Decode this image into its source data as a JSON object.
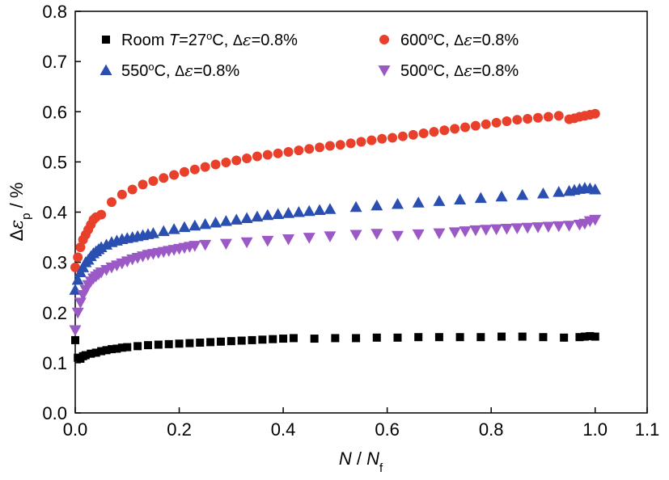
{
  "chart_data": {
    "type": "scatter",
    "xlabel": "N / N_f",
    "ylabel": "Δε_p / %",
    "xlim": [
      0.0,
      1.1
    ],
    "ylim": [
      0.0,
      0.8
    ],
    "x_ticks": [
      "0.0",
      "0.2",
      "0.4",
      "0.6",
      "0.8",
      "1.0",
      "1.1"
    ],
    "y_ticks": [
      "0.0",
      "0.1",
      "0.2",
      "0.3",
      "0.4",
      "0.5",
      "0.6",
      "0.7",
      "0.8"
    ],
    "legend_placement": "top",
    "series": [
      {
        "name": "Room T=27°C, Δε=0.8%",
        "legend": {
          "prefix": "Room ",
          "var": "T",
          "mid": "=27",
          "sup": "o",
          "post": "C, ",
          "delta": "Δ",
          "eps": "ε",
          "tail": "=0.8%"
        },
        "marker": "square",
        "color": "#000000",
        "x": [
          0.0,
          0.005,
          0.01,
          0.015,
          0.02,
          0.03,
          0.04,
          0.05,
          0.06,
          0.07,
          0.08,
          0.09,
          0.1,
          0.12,
          0.14,
          0.16,
          0.18,
          0.2,
          0.22,
          0.24,
          0.26,
          0.28,
          0.3,
          0.32,
          0.34,
          0.36,
          0.38,
          0.4,
          0.42,
          0.46,
          0.5,
          0.54,
          0.58,
          0.62,
          0.66,
          0.7,
          0.74,
          0.78,
          0.82,
          0.86,
          0.9,
          0.94,
          0.97,
          0.98,
          0.99,
          1.0
        ],
        "y": [
          0.145,
          0.11,
          0.108,
          0.113,
          0.115,
          0.118,
          0.12,
          0.123,
          0.125,
          0.127,
          0.128,
          0.13,
          0.131,
          0.133,
          0.135,
          0.136,
          0.137,
          0.138,
          0.139,
          0.14,
          0.141,
          0.142,
          0.143,
          0.144,
          0.145,
          0.146,
          0.147,
          0.148,
          0.149,
          0.148,
          0.149,
          0.149,
          0.15,
          0.15,
          0.151,
          0.151,
          0.151,
          0.151,
          0.152,
          0.152,
          0.151,
          0.15,
          0.151,
          0.152,
          0.153,
          0.152
        ]
      },
      {
        "name": "600°C, Δε=0.8%",
        "legend": {
          "prefix": "",
          "var": "",
          "mid": "600",
          "sup": "o",
          "post": "C, ",
          "delta": "Δ",
          "eps": "ε",
          "tail": "=0.8%"
        },
        "marker": "circle",
        "color": "#e8402b",
        "x": [
          0.0,
          0.005,
          0.01,
          0.015,
          0.02,
          0.025,
          0.03,
          0.035,
          0.04,
          0.05,
          0.07,
          0.09,
          0.11,
          0.13,
          0.15,
          0.17,
          0.19,
          0.21,
          0.23,
          0.25,
          0.27,
          0.29,
          0.31,
          0.33,
          0.35,
          0.37,
          0.39,
          0.41,
          0.43,
          0.45,
          0.47,
          0.49,
          0.51,
          0.53,
          0.55,
          0.57,
          0.59,
          0.61,
          0.63,
          0.65,
          0.67,
          0.69,
          0.71,
          0.73,
          0.75,
          0.77,
          0.79,
          0.81,
          0.83,
          0.85,
          0.87,
          0.89,
          0.91,
          0.93,
          0.95,
          0.96,
          0.97,
          0.98,
          0.99,
          1.0
        ],
        "y": [
          0.29,
          0.31,
          0.33,
          0.345,
          0.355,
          0.365,
          0.375,
          0.385,
          0.39,
          0.395,
          0.42,
          0.435,
          0.445,
          0.455,
          0.462,
          0.468,
          0.474,
          0.48,
          0.485,
          0.49,
          0.495,
          0.499,
          0.503,
          0.507,
          0.511,
          0.514,
          0.517,
          0.52,
          0.523,
          0.526,
          0.529,
          0.532,
          0.534,
          0.537,
          0.54,
          0.543,
          0.546,
          0.548,
          0.551,
          0.554,
          0.557,
          0.56,
          0.563,
          0.566,
          0.569,
          0.572,
          0.575,
          0.578,
          0.581,
          0.584,
          0.586,
          0.588,
          0.59,
          0.592,
          0.585,
          0.587,
          0.59,
          0.592,
          0.594,
          0.596
        ]
      },
      {
        "name": "550°C, Δε=0.8%",
        "legend": {
          "prefix": "",
          "var": "",
          "mid": "550",
          "sup": "o",
          "post": "C, ",
          "delta": "Δ",
          "eps": "ε",
          "tail": "=0.8%"
        },
        "marker": "triangle-up",
        "color": "#2b4fb0",
        "x": [
          0.0,
          0.005,
          0.01,
          0.015,
          0.02,
          0.025,
          0.03,
          0.035,
          0.04,
          0.045,
          0.05,
          0.06,
          0.07,
          0.08,
          0.09,
          0.1,
          0.11,
          0.12,
          0.13,
          0.14,
          0.15,
          0.17,
          0.19,
          0.21,
          0.23,
          0.25,
          0.27,
          0.29,
          0.31,
          0.33,
          0.35,
          0.37,
          0.39,
          0.41,
          0.43,
          0.45,
          0.47,
          0.49,
          0.54,
          0.58,
          0.62,
          0.66,
          0.7,
          0.74,
          0.78,
          0.82,
          0.86,
          0.9,
          0.93,
          0.95,
          0.96,
          0.97,
          0.98,
          0.99,
          1.0
        ],
        "y": [
          0.245,
          0.265,
          0.28,
          0.29,
          0.3,
          0.305,
          0.312,
          0.318,
          0.322,
          0.326,
          0.33,
          0.335,
          0.34,
          0.343,
          0.346,
          0.348,
          0.35,
          0.352,
          0.354,
          0.356,
          0.358,
          0.362,
          0.366,
          0.37,
          0.373,
          0.376,
          0.379,
          0.382,
          0.385,
          0.388,
          0.391,
          0.394,
          0.396,
          0.398,
          0.4,
          0.402,
          0.404,
          0.406,
          0.41,
          0.413,
          0.416,
          0.419,
          0.422,
          0.425,
          0.428,
          0.431,
          0.434,
          0.437,
          0.44,
          0.442,
          0.444,
          0.446,
          0.448,
          0.447,
          0.445
        ]
      },
      {
        "name": "500°C, Δε=0.8%",
        "legend": {
          "prefix": "",
          "var": "",
          "mid": "500",
          "sup": "o",
          "post": "C, ",
          "delta": "Δ",
          "eps": "ε",
          "tail": "=0.8%"
        },
        "marker": "triangle-down",
        "color": "#9b59c6",
        "x": [
          0.0,
          0.005,
          0.01,
          0.015,
          0.02,
          0.025,
          0.03,
          0.035,
          0.04,
          0.045,
          0.05,
          0.06,
          0.07,
          0.08,
          0.09,
          0.1,
          0.11,
          0.12,
          0.13,
          0.14,
          0.15,
          0.16,
          0.17,
          0.18,
          0.19,
          0.2,
          0.21,
          0.22,
          0.23,
          0.25,
          0.29,
          0.33,
          0.37,
          0.41,
          0.45,
          0.49,
          0.54,
          0.58,
          0.62,
          0.66,
          0.7,
          0.73,
          0.75,
          0.77,
          0.79,
          0.81,
          0.83,
          0.85,
          0.87,
          0.89,
          0.91,
          0.93,
          0.95,
          0.97,
          0.98,
          0.99,
          1.0
        ],
        "y": [
          0.165,
          0.2,
          0.22,
          0.235,
          0.245,
          0.255,
          0.262,
          0.268,
          0.272,
          0.276,
          0.28,
          0.285,
          0.29,
          0.294,
          0.298,
          0.302,
          0.306,
          0.309,
          0.312,
          0.315,
          0.317,
          0.319,
          0.321,
          0.323,
          0.325,
          0.327,
          0.329,
          0.331,
          0.333,
          0.335,
          0.337,
          0.34,
          0.343,
          0.346,
          0.349,
          0.352,
          0.355,
          0.357,
          0.353,
          0.356,
          0.358,
          0.36,
          0.362,
          0.364,
          0.365,
          0.366,
          0.367,
          0.368,
          0.369,
          0.37,
          0.371,
          0.372,
          0.373,
          0.375,
          0.377,
          0.382,
          0.385
        ]
      }
    ]
  }
}
